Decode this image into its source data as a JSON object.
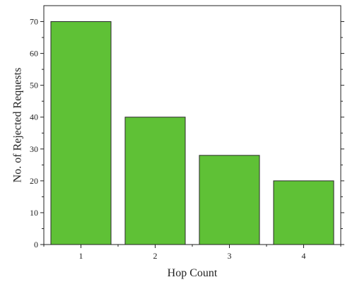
{
  "chart_data": {
    "type": "bar",
    "title": "",
    "xlabel": "Hop Count",
    "ylabel": "No. of Rejected Requests",
    "categories": [
      "1",
      "2",
      "3",
      "4"
    ],
    "values": [
      70,
      40,
      28,
      20
    ],
    "ylim": [
      0,
      75
    ],
    "yticks": [
      0,
      10,
      20,
      30,
      40,
      50,
      60,
      70
    ],
    "grid": false,
    "legend": "none",
    "bar_color": "#5fc136",
    "bar_edge_color": "#2a2a2a"
  }
}
